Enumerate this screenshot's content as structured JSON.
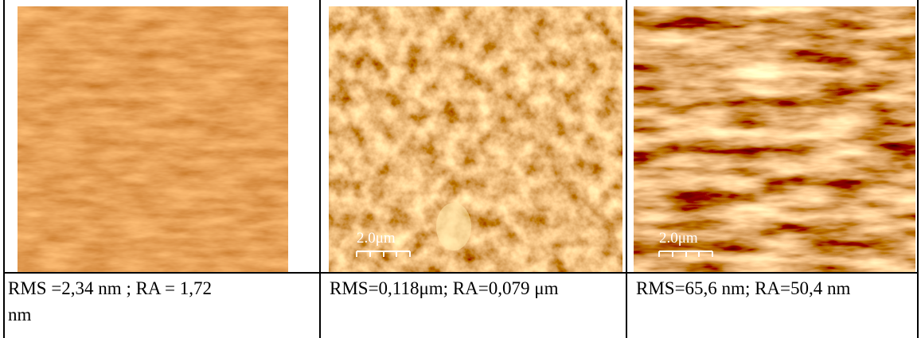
{
  "panels": [
    {
      "caption": "RMS =2,34 nm ; RA = 1,72 nm"
    },
    {
      "scale_bar": "2.0μm",
      "caption": "RMS=0,118μm; RA=0,079 μm"
    },
    {
      "scale_bar": "2.0μm",
      "caption": "RMS=65,6 nm; RA=50,4 nm"
    }
  ]
}
